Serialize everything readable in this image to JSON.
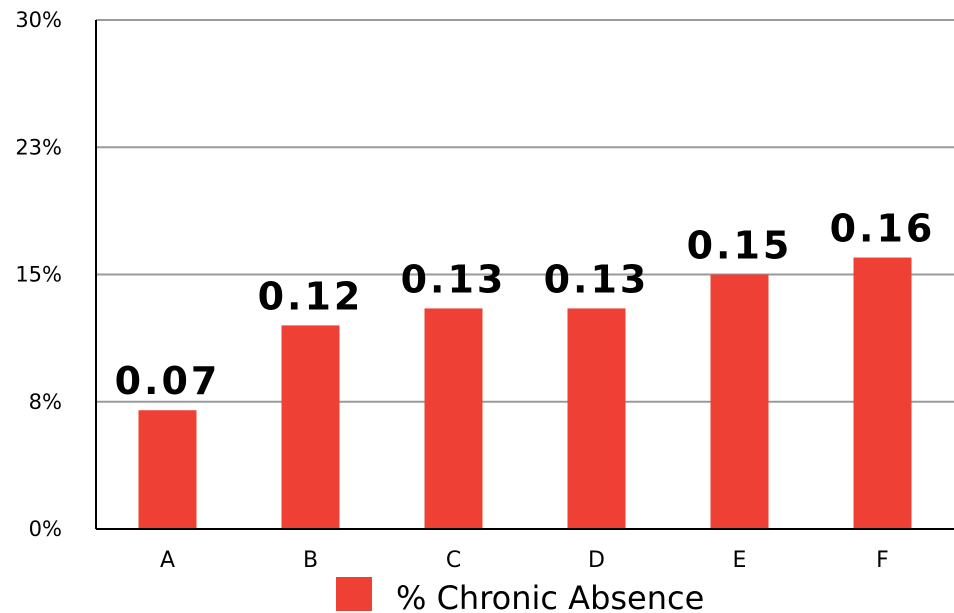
{
  "chart_data": {
    "type": "bar",
    "categories": [
      "A",
      "B",
      "C",
      "D",
      "E",
      "F"
    ],
    "series": [
      {
        "name": "% Chronic Absence",
        "values": [
          0.07,
          0.12,
          0.13,
          0.13,
          0.15,
          0.16
        ],
        "data_labels": [
          "0.07",
          "0.12",
          "0.13",
          "0.13",
          "0.15",
          "0.16"
        ],
        "color": "#ee4035"
      }
    ],
    "yticks": [
      {
        "value": 0,
        "label": "0%"
      },
      {
        "value": 0.075,
        "label": "8%"
      },
      {
        "value": 0.15,
        "label": "15%"
      },
      {
        "value": 0.225,
        "label": "23%"
      },
      {
        "value": 0.3,
        "label": "30%"
      }
    ],
    "ylim": [
      0,
      0.3
    ],
    "grid": true,
    "legend_position": "bottom",
    "title": "",
    "xlabel": "",
    "ylabel": ""
  }
}
